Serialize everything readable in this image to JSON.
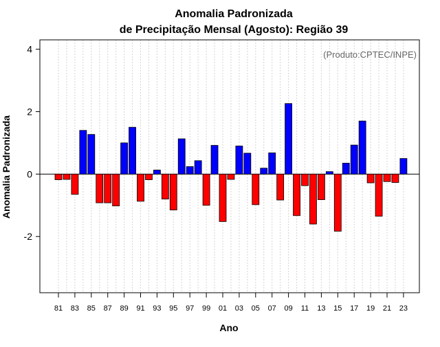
{
  "chart_data": {
    "type": "bar",
    "title_line1": "Anomalia Padronizada",
    "title_line2": "de Precipitação Mensal (Agosto): Região 39",
    "annotation": "(Produto:CPTEC/INPE)",
    "xlabel": "Ano",
    "ylabel": "Anomalia Padronizada",
    "ylim": [
      -3.8,
      4.3
    ],
    "yticks": [
      -2,
      0,
      2,
      4
    ],
    "ytick_labels": [
      "-2",
      "0",
      "2",
      "4"
    ],
    "positive_color": "#0000ff",
    "negative_color": "#ff0000",
    "categories": [
      "81",
      "82",
      "83",
      "84",
      "85",
      "86",
      "87",
      "88",
      "89",
      "90",
      "91",
      "92",
      "93",
      "94",
      "95",
      "96",
      "97",
      "98",
      "99",
      "00",
      "01",
      "02",
      "03",
      "04",
      "05",
      "06",
      "07",
      "08",
      "09",
      "10",
      "11",
      "12",
      "13",
      "14",
      "15",
      "16",
      "17",
      "18",
      "19",
      "20",
      "21",
      "22",
      "23"
    ],
    "xtick_labels": [
      "81",
      "83",
      "85",
      "87",
      "89",
      "91",
      "93",
      "95",
      "97",
      "99",
      "01",
      "03",
      "05",
      "07",
      "09",
      "11",
      "13",
      "15",
      "17",
      "19",
      "21",
      "23"
    ],
    "values": [
      -0.18,
      -0.17,
      -0.65,
      1.4,
      1.27,
      -0.92,
      -0.92,
      -1.02,
      1.0,
      1.5,
      -0.87,
      -0.18,
      0.13,
      -0.8,
      -1.15,
      1.13,
      0.24,
      0.43,
      -1.0,
      0.92,
      -1.52,
      -0.17,
      0.9,
      0.67,
      -0.98,
      0.19,
      0.68,
      -0.83,
      2.26,
      -1.33,
      -0.37,
      -1.6,
      -0.82,
      0.08,
      -1.83,
      0.35,
      0.93,
      1.7,
      -0.28,
      -1.35,
      -0.24,
      -0.27,
      0.5
    ]
  }
}
